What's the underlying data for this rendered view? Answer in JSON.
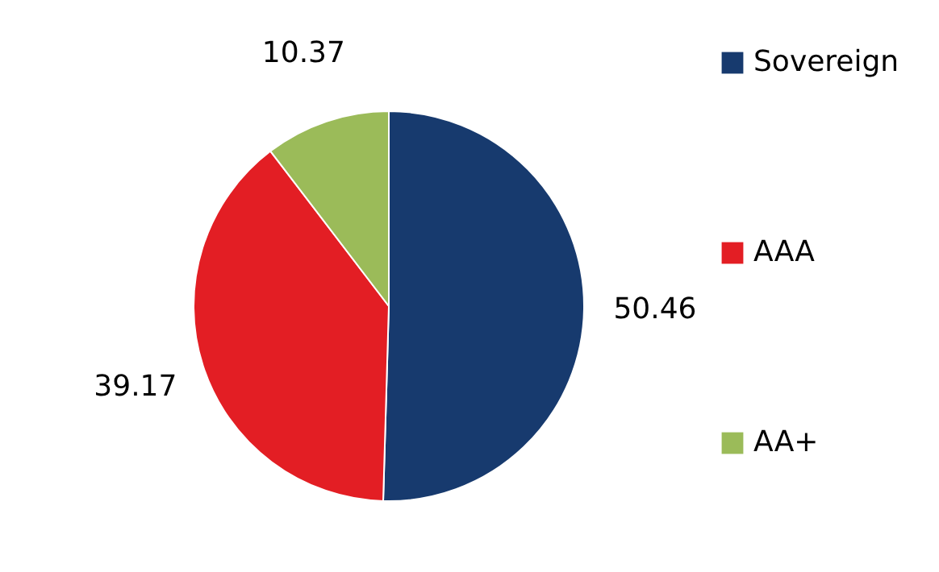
{
  "chart_data": {
    "type": "pie",
    "categories": [
      "Sovereign",
      "AAA",
      "AA+"
    ],
    "values": [
      50.46,
      39.17,
      10.37
    ],
    "colors": [
      "#173a6e",
      "#e31e24",
      "#9bbb59"
    ],
    "data_labels": true,
    "legend": "right"
  }
}
